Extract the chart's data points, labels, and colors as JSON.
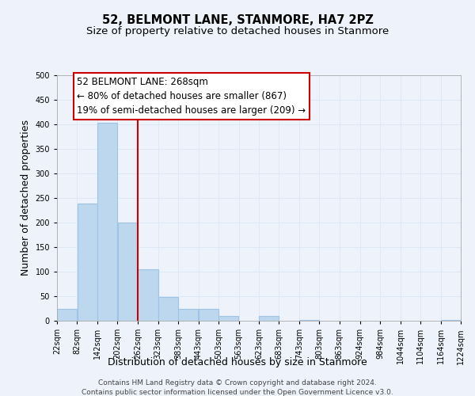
{
  "title": "52, BELMONT LANE, STANMORE, HA7 2PZ",
  "subtitle": "Size of property relative to detached houses in Stanmore",
  "xlabel": "Distribution of detached houses by size in Stanmore",
  "ylabel": "Number of detached properties",
  "bar_left_edges": [
    22,
    82,
    142,
    202,
    262,
    323,
    383,
    443,
    503,
    563,
    623,
    683,
    743,
    803,
    863,
    924,
    984,
    1044,
    1104,
    1164
  ],
  "bar_widths": [
    60,
    60,
    60,
    60,
    61,
    60,
    60,
    60,
    60,
    60,
    60,
    60,
    60,
    60,
    61,
    60,
    60,
    60,
    60,
    60
  ],
  "bar_heights": [
    25,
    238,
    403,
    200,
    105,
    49,
    25,
    25,
    10,
    0,
    10,
    0,
    2,
    0,
    0,
    0,
    0,
    0,
    0,
    2
  ],
  "bar_color": "#bdd7ee",
  "bar_edge_color": "#9dc3e6",
  "property_line_x": 262,
  "property_line_color": "#cc0000",
  "annotation_title": "52 BELMONT LANE: 268sqm",
  "annotation_line1": "← 80% of detached houses are smaller (867)",
  "annotation_line2": "19% of semi-detached houses are larger (209) →",
  "annotation_box_color": "#ffffff",
  "annotation_border_color": "#cc0000",
  "xlim": [
    22,
    1224
  ],
  "ylim": [
    0,
    500
  ],
  "yticks": [
    0,
    50,
    100,
    150,
    200,
    250,
    300,
    350,
    400,
    450,
    500
  ],
  "xtick_labels": [
    "22sqm",
    "82sqm",
    "142sqm",
    "202sqm",
    "262sqm",
    "323sqm",
    "383sqm",
    "443sqm",
    "503sqm",
    "563sqm",
    "623sqm",
    "683sqm",
    "743sqm",
    "803sqm",
    "863sqm",
    "924sqm",
    "984sqm",
    "1044sqm",
    "1104sqm",
    "1164sqm",
    "1224sqm"
  ],
  "xtick_positions": [
    22,
    82,
    142,
    202,
    262,
    323,
    383,
    443,
    503,
    563,
    623,
    683,
    743,
    803,
    863,
    924,
    984,
    1044,
    1104,
    1164,
    1224
  ],
  "grid_color": "#dce8f5",
  "background_color": "#eef2fb",
  "footer_line1": "Contains HM Land Registry data © Crown copyright and database right 2024.",
  "footer_line2": "Contains public sector information licensed under the Open Government Licence v3.0.",
  "title_fontsize": 10.5,
  "subtitle_fontsize": 9.5,
  "axis_label_fontsize": 9,
  "tick_fontsize": 7,
  "annotation_fontsize": 8.5,
  "footer_fontsize": 6.5
}
